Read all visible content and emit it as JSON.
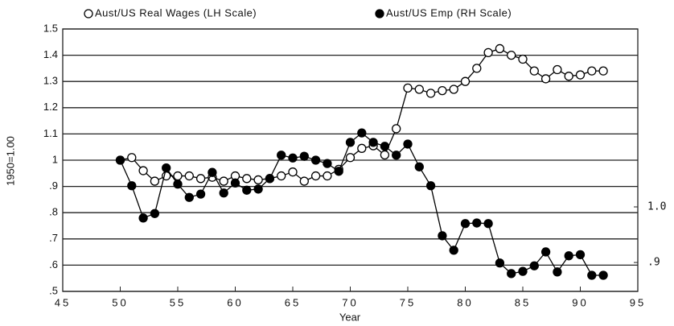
{
  "chart_data": {
    "type": "line",
    "y_label": "1950=1.00",
    "x_label": "Year",
    "xlim": [
      45,
      95
    ],
    "xticks": [
      45,
      50,
      55,
      60,
      65,
      70,
      75,
      80,
      85,
      90,
      95
    ],
    "ylim": [
      0.5,
      1.5
    ],
    "yticks": [
      {
        "value": 0.5,
        "label": ".5"
      },
      {
        "value": 0.6,
        "label": ".6"
      },
      {
        "value": 0.7,
        "label": ".7"
      },
      {
        "value": 0.8,
        "label": ".8"
      },
      {
        "value": 0.9,
        "label": ".9"
      },
      1,
      1.1,
      1.2,
      1.3,
      1.4,
      1.5
    ],
    "y2lim": [
      0.848,
      1.32
    ],
    "y2ticks": [
      {
        "value": 0.9,
        "label": ".9"
      },
      {
        "value": 1.0,
        "label": "1.0"
      }
    ],
    "grid": true,
    "x": [
      50,
      51,
      52,
      53,
      54,
      55,
      56,
      57,
      58,
      59,
      60,
      61,
      62,
      63,
      64,
      65,
      66,
      67,
      68,
      69,
      70,
      71,
      72,
      73,
      74,
      75,
      76,
      77,
      78,
      79,
      80,
      81,
      82,
      83,
      84,
      85,
      86,
      87,
      88,
      89,
      90,
      91,
      92
    ],
    "series": [
      {
        "name": "Aust/US Real Wages (LH Scale)",
        "color": "#000000",
        "fill": "#ffffff",
        "values": [
          1.0,
          1.01,
          0.96,
          0.92,
          0.94,
          0.94,
          0.94,
          0.93,
          0.935,
          0.92,
          0.94,
          0.93,
          0.925,
          0.93,
          0.94,
          0.955,
          0.92,
          0.94,
          0.94,
          0.965,
          1.01,
          1.045,
          1.055,
          1.02,
          1.12,
          1.275,
          1.27,
          1.255,
          1.265,
          1.27,
          1.3,
          1.35,
          1.41,
          1.425,
          1.4,
          1.385,
          1.34,
          1.31,
          1.345,
          1.32,
          1.325,
          1.34,
          1.34
        ]
      },
      {
        "name": "Aust/US Emp (RH Scale)",
        "color": "#000000",
        "fill": "#000000",
        "axis": "y2",
        "values": [
          1.084,
          1.038,
          0.98,
          0.988,
          1.07,
          1.041,
          1.017,
          1.023,
          1.062,
          1.025,
          1.043,
          1.03,
          1.032,
          1.051,
          1.093,
          1.088,
          1.091,
          1.084,
          1.078,
          1.064,
          1.116,
          1.133,
          1.116,
          1.109,
          1.093,
          1.113,
          1.072,
          1.038,
          0.948,
          0.922,
          0.97,
          0.971,
          0.97,
          0.899,
          0.88,
          0.884,
          0.894,
          0.919,
          0.883,
          0.912,
          0.914,
          0.877,
          0.877
        ]
      }
    ]
  }
}
